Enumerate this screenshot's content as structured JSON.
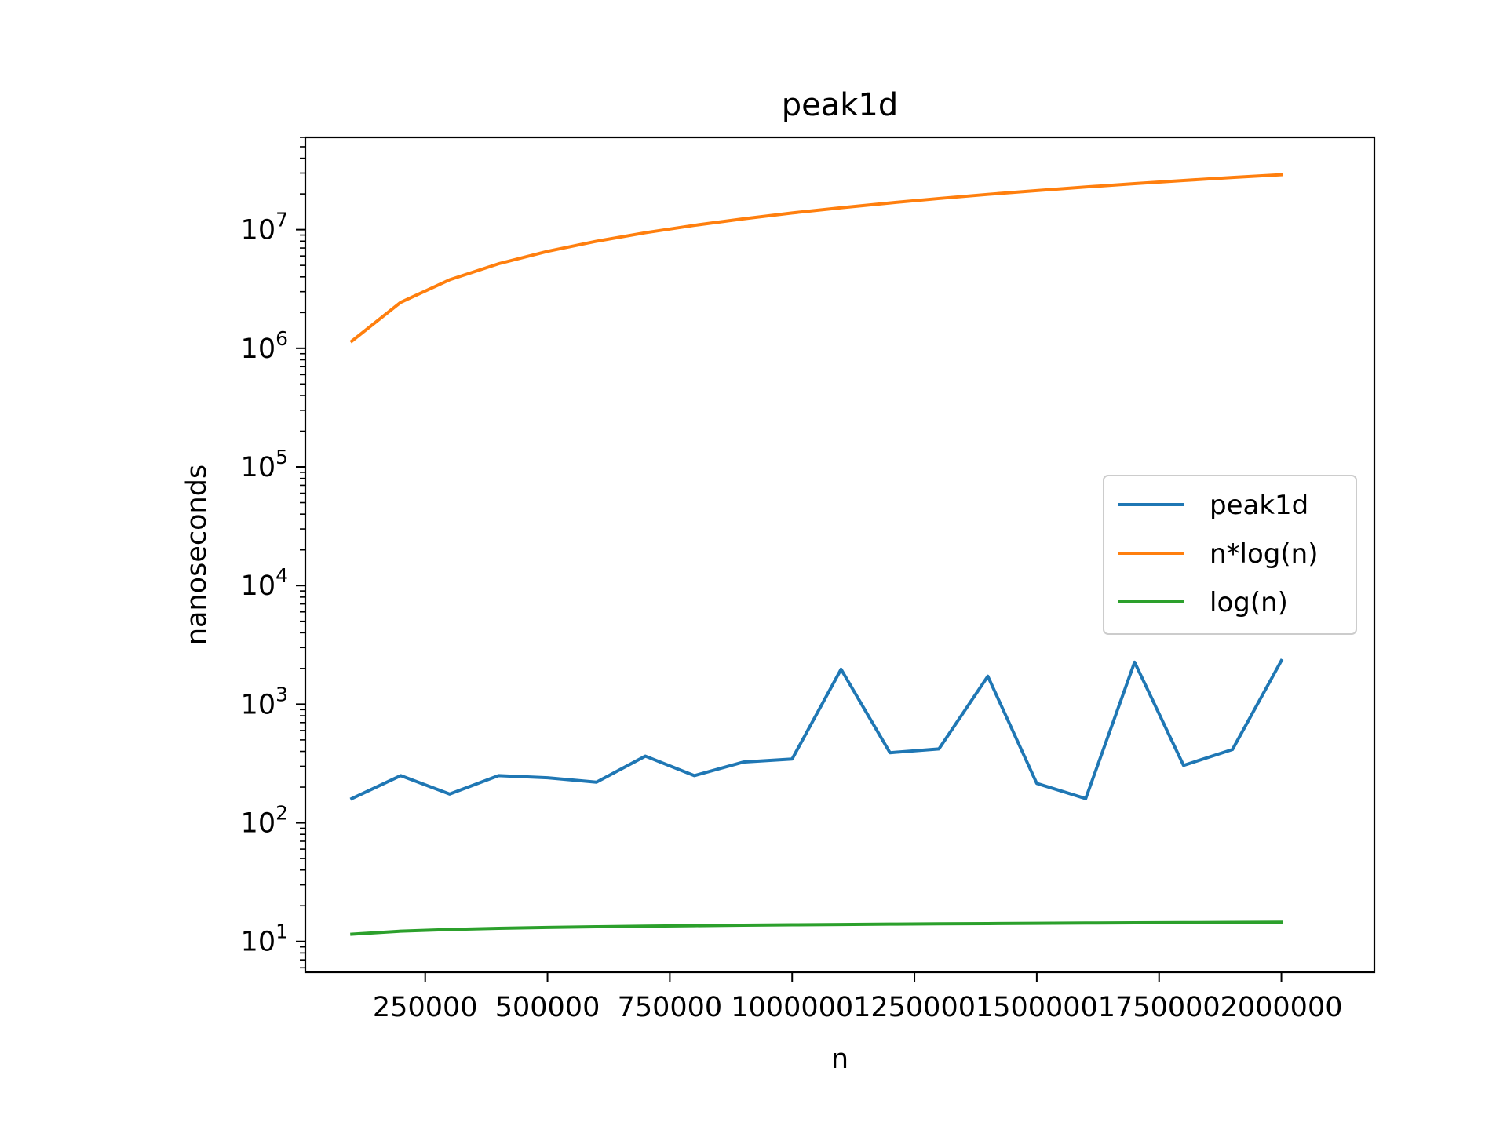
{
  "chart_data": {
    "type": "line",
    "title": "peak1d",
    "xlabel": "n",
    "ylabel": "nanoseconds",
    "yscale": "log",
    "xlim": [
      5000,
      2190000
    ],
    "ylim": [
      5.5,
      60000000
    ],
    "grid": false,
    "legend_position": "center-right",
    "x_ticks": [
      250000,
      500000,
      750000,
      1000000,
      1250000,
      1500000,
      1750000,
      2000000
    ],
    "x_tick_labels": [
      "250000",
      "500000",
      "750000",
      "1000000",
      "1250000",
      "1500000",
      "1750000",
      "2000000"
    ],
    "y_tick_labels": [
      {
        "base": "10",
        "exp": "1",
        "value": 10
      },
      {
        "base": "10",
        "exp": "2",
        "value": 100
      },
      {
        "base": "10",
        "exp": "3",
        "value": 1000
      },
      {
        "base": "10",
        "exp": "4",
        "value": 10000
      },
      {
        "base": "10",
        "exp": "5",
        "value": 100000
      },
      {
        "base": "10",
        "exp": "6",
        "value": 1000000
      },
      {
        "base": "10",
        "exp": "7",
        "value": 10000000
      }
    ],
    "x": [
      100000,
      200000,
      300000,
      400000,
      500000,
      600000,
      700000,
      800000,
      900000,
      1000000,
      1100000,
      1200000,
      1300000,
      1400000,
      1500000,
      1600000,
      1700000,
      1800000,
      1900000,
      2000000
    ],
    "series": [
      {
        "name": "peak1d",
        "color": "#1f77b4",
        "values": [
          160,
          250,
          175,
          250,
          240,
          220,
          365,
          250,
          325,
          345,
          1970,
          390,
          420,
          1720,
          215,
          160,
          2260,
          305,
          415,
          2330
        ]
      },
      {
        "name": "n*log(n)",
        "color": "#ff7f0e",
        "values": [
          1150000,
          2440000,
          3780000,
          5160000,
          6560000,
          7980000,
          9420000,
          10870000,
          12340000,
          13820000,
          15300000,
          16800000,
          18310000,
          19830000,
          21350000,
          22890000,
          24430000,
          25970000,
          27520000,
          29080000
        ]
      },
      {
        "name": "log(n)",
        "color": "#2ca02c",
        "values": [
          11.51,
          12.21,
          12.61,
          12.9,
          13.12,
          13.3,
          13.46,
          13.59,
          13.71,
          13.82,
          13.91,
          14.0,
          14.08,
          14.15,
          14.22,
          14.29,
          14.35,
          14.4,
          14.46,
          14.51
        ]
      }
    ]
  }
}
